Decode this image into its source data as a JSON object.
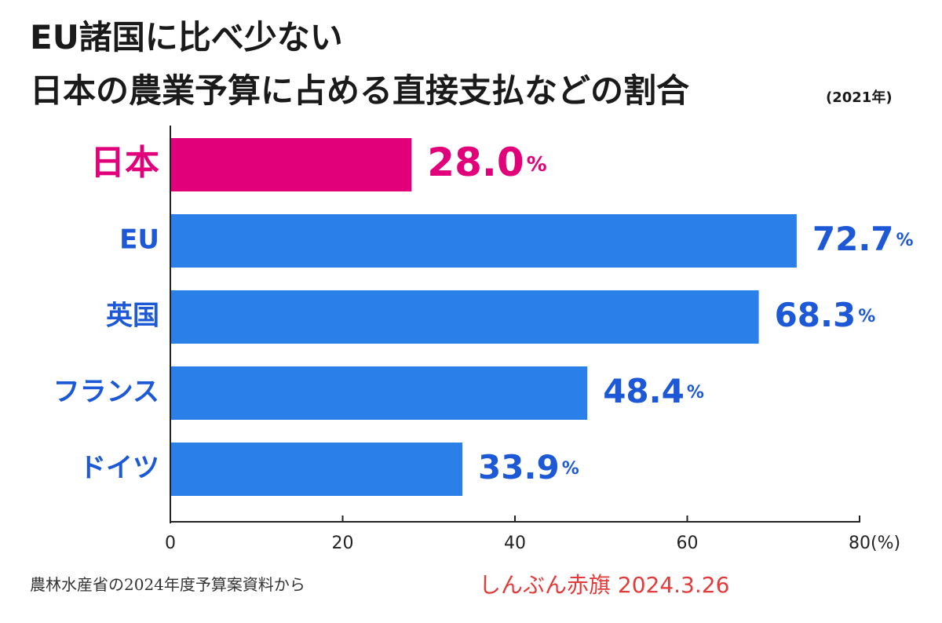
{
  "title_line1": "EU諸国に比べ少ない",
  "title_line2": "日本の農業予算に占める直接支払などの割合",
  "title_year": "(2021年)",
  "source_note": "農林水産省の2024年度予算案資料から",
  "credit": "しんぶん赤旗 2024.3.26",
  "colors": {
    "highlight": "#e2007a",
    "bar": "#2a7fe8",
    "label": "#1d59d6",
    "credit": "#e23b3b",
    "text": "#1a1a1a"
  },
  "chart_data": {
    "type": "bar",
    "orientation": "horizontal",
    "categories": [
      "日本",
      "EU",
      "英国",
      "フランス",
      "ドイツ"
    ],
    "values": [
      28.0,
      72.7,
      68.3,
      48.4,
      33.9
    ],
    "value_labels": [
      "28.0",
      "72.7",
      "68.3",
      "48.4",
      "33.9"
    ],
    "value_unit": "%",
    "highlight_index": 0,
    "xlim": [
      0,
      80
    ],
    "xticks": [
      "0",
      "20",
      "40",
      "60",
      "80(%)"
    ],
    "xtick_values": [
      0,
      20,
      40,
      60,
      80
    ],
    "grid": false
  }
}
